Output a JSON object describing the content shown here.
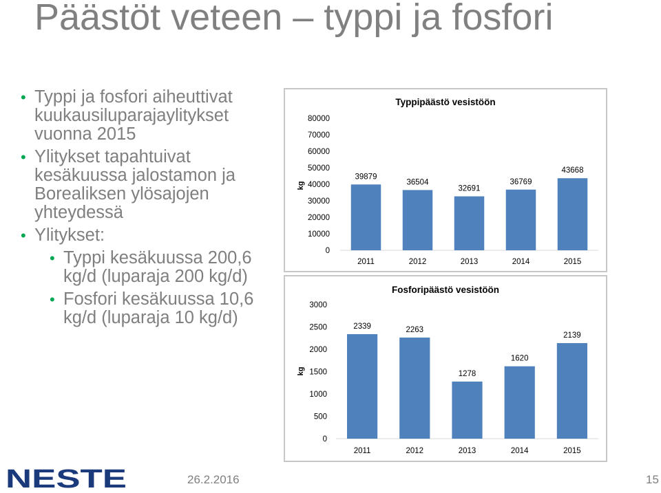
{
  "slide": {
    "title": "Päästöt veteen – typpi ja fosfori",
    "bullets": [
      {
        "text": "Typpi ja fosfori aiheuttivat kuukausiluparajaylitykset vuonna 2015",
        "level": 1
      },
      {
        "text": "Ylitykset tapahtuivat kesäkuussa jalostamon ja Borealiksen ylösajojen yhteydessä",
        "level": 1
      },
      {
        "text": "Ylitykset:",
        "level": 1
      },
      {
        "text": "Typpi kesäkuussa 200,6 kg/d (luparaja 200 kg/d)",
        "level": 2
      },
      {
        "text": "Fosfori kesäkuussa 10,6 kg/d (luparaja 10 kg/d)",
        "level": 2
      }
    ],
    "footer": {
      "logo_text": "NESTE",
      "date": "26.2.2016",
      "page_number": "15"
    }
  },
  "colors": {
    "bar": "#4f81bd",
    "bullet": "#00a651",
    "logo": "#1b3a7c",
    "text": "#7f7f7f"
  },
  "chart_data": [
    {
      "type": "bar",
      "title": "Typpipäästö vesistöön",
      "ylabel": "kg",
      "xlabel": "",
      "categories": [
        "2011",
        "2012",
        "2013",
        "2014",
        "2015"
      ],
      "values": [
        39879,
        36504,
        32691,
        36769,
        43668
      ],
      "data_labels": [
        "39879",
        "36504",
        "32691",
        "36769",
        "43668"
      ],
      "ylim": [
        0,
        80000
      ],
      "yticks": [
        0,
        10000,
        20000,
        30000,
        40000,
        50000,
        60000,
        70000,
        80000
      ],
      "ytick_labels": [
        "0",
        "10000",
        "20000",
        "30000",
        "40000",
        "50000",
        "60000",
        "70000",
        "80000"
      ],
      "grid": false,
      "legend": "none"
    },
    {
      "type": "bar",
      "title": "Fosforipäästö vesistöön",
      "ylabel": "kg",
      "xlabel": "",
      "categories": [
        "2011",
        "2012",
        "2013",
        "2014",
        "2015"
      ],
      "values": [
        2339,
        2263,
        1278,
        1620,
        2139
      ],
      "data_labels": [
        "2339",
        "2263",
        "1278",
        "1620",
        "2139"
      ],
      "ylim": [
        0,
        3000
      ],
      "yticks": [
        0,
        500,
        1000,
        1500,
        2000,
        2500,
        3000
      ],
      "ytick_labels": [
        "0",
        "500",
        "1000",
        "1500",
        "2000",
        "2500",
        "3000"
      ],
      "grid": false,
      "legend": "none"
    }
  ]
}
